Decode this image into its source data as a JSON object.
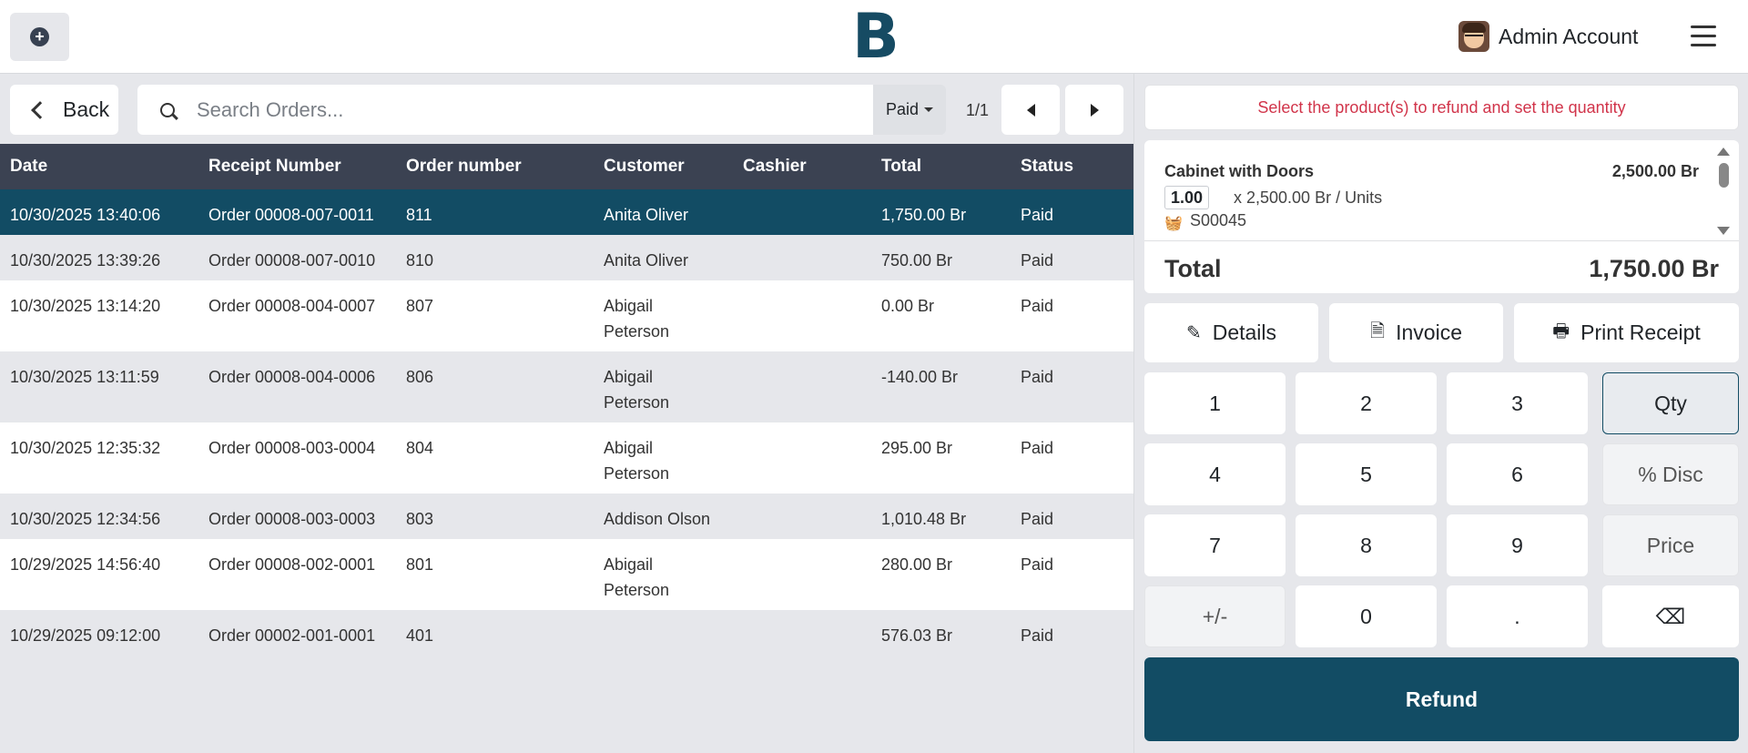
{
  "header": {
    "logo": "B",
    "user_name": "Admin Account"
  },
  "toolbar": {
    "back_label": "Back",
    "search_placeholder": "Search Orders...",
    "filter_label": "Paid",
    "pager": "1/1"
  },
  "table": {
    "columns": [
      "Date",
      "Receipt Number",
      "Order number",
      "Customer",
      "Cashier",
      "Total",
      "Status"
    ],
    "rows": [
      {
        "date": "10/30/2025 13:40:06",
        "receipt": "Order 00008-007-0011",
        "order": "811",
        "customer": "Anita Oliver",
        "customer2": "",
        "cashier": "",
        "total": "1,750.00 Br",
        "status": "Paid"
      },
      {
        "date": "10/30/2025 13:39:26",
        "receipt": "Order 00008-007-0010",
        "order": "810",
        "customer": "Anita Oliver",
        "customer2": "",
        "cashier": "",
        "total": "750.00 Br",
        "status": "Paid"
      },
      {
        "date": "10/30/2025 13:14:20",
        "receipt": "Order 00008-004-0007",
        "order": "807",
        "customer": "Abigail",
        "customer2": "Peterson",
        "cashier": "",
        "total": "0.00 Br",
        "status": "Paid"
      },
      {
        "date": "10/30/2025 13:11:59",
        "receipt": "Order 00008-004-0006",
        "order": "806",
        "customer": "Abigail",
        "customer2": "Peterson",
        "cashier": "",
        "total": "-140.00 Br",
        "status": "Paid"
      },
      {
        "date": "10/30/2025 12:35:32",
        "receipt": "Order 00008-003-0004",
        "order": "804",
        "customer": "Abigail",
        "customer2": "Peterson",
        "cashier": "",
        "total": "295.00 Br",
        "status": "Paid"
      },
      {
        "date": "10/30/2025 12:34:56",
        "receipt": "Order 00008-003-0003",
        "order": "803",
        "customer": "Addison Olson",
        "customer2": "",
        "cashier": "",
        "total": "1,010.48 Br",
        "status": "Paid"
      },
      {
        "date": "10/29/2025 14:56:40",
        "receipt": "Order 00008-002-0001",
        "order": "801",
        "customer": "Abigail",
        "customer2": "Peterson",
        "cashier": "",
        "total": "280.00 Br",
        "status": "Paid"
      },
      {
        "date": "10/29/2025 09:12:00",
        "receipt": "Order 00002-001-0001",
        "order": "401",
        "customer": "",
        "customer2": "",
        "cashier": "",
        "total": "576.03 Br",
        "status": "Paid"
      }
    ]
  },
  "refund_panel": {
    "notice": "Select the product(s) to refund and set the quantity",
    "line": {
      "product": "Cabinet with Doors",
      "price": "2,500.00 Br",
      "qty": "1.00",
      "unit_detail": "x 2,500.00 Br / Units",
      "ref": "S00045"
    },
    "total_label": "Total",
    "total_value": "1,750.00 Br",
    "actions": {
      "details": "Details",
      "invoice": "Invoice",
      "print": "Print Receipt"
    },
    "keys": {
      "k1": "1",
      "k2": "2",
      "k3": "3",
      "qty": "Qty",
      "k4": "4",
      "k5": "5",
      "k6": "6",
      "disc": "% Disc",
      "k7": "7",
      "k8": "8",
      "k9": "9",
      "price": "Price",
      "sign": "+/-",
      "k0": "0",
      "dot": ".",
      "back": "⌫"
    },
    "refund_label": "Refund"
  },
  "colors": {
    "brand": "#124c64",
    "header_row": "#3b4252",
    "notice_text": "#d1344a"
  }
}
